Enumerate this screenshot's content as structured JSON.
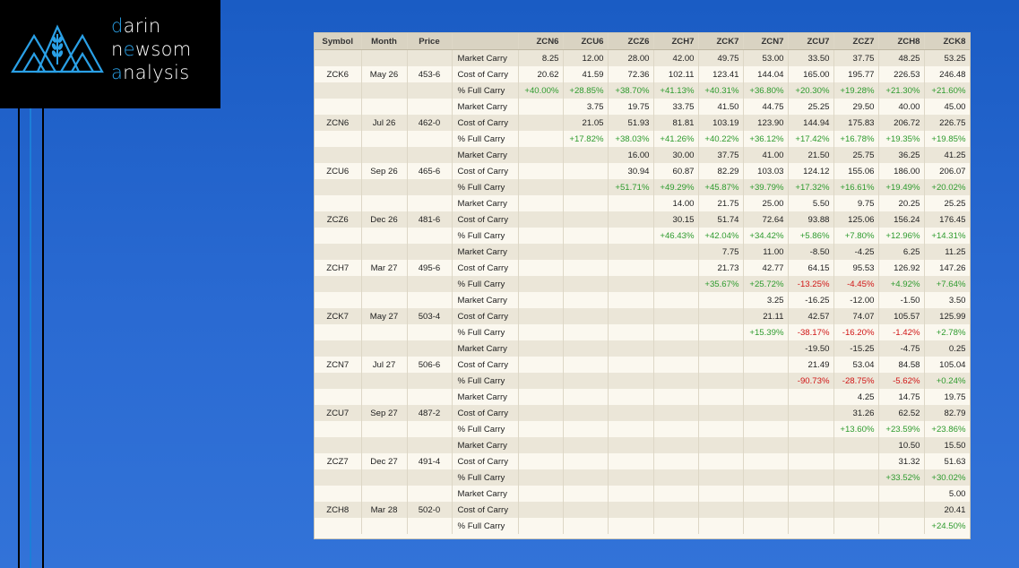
{
  "logo": {
    "line1_accent": "d",
    "line1_rest": "arin",
    "line2_pre": "n",
    "line2_accent": "e",
    "line2_mid": "w",
    "line2_rest": "som",
    "line3_accent": "a",
    "line3_rest": "nalysis",
    "accent_color": "#2aa0e6"
  },
  "table": {
    "headers": [
      "Symbol",
      "Month",
      "Price",
      "",
      "ZCN6",
      "ZCU6",
      "ZCZ6",
      "ZCH7",
      "ZCK7",
      "ZCN7",
      "ZCU7",
      "ZCZ7",
      "ZCH8",
      "ZCK8"
    ],
    "rows": [
      {
        "band": true,
        "cells": [
          "",
          "",
          "",
          "Market Carry",
          "8.25",
          "12.00",
          "28.00",
          "42.00",
          "49.75",
          "53.00",
          "33.50",
          "37.75",
          "48.25",
          "53.25"
        ]
      },
      {
        "band": false,
        "cells": [
          "ZCK6",
          "May 26",
          "453-6",
          "Cost of Carry",
          "20.62",
          "41.59",
          "72.36",
          "102.11",
          "123.41",
          "144.04",
          "165.00",
          "195.77",
          "226.53",
          "246.48"
        ]
      },
      {
        "band": true,
        "cells": [
          "",
          "",
          "",
          "% Full Carry",
          "+40.00%",
          "+28.85%",
          "+38.70%",
          "+41.13%",
          "+40.31%",
          "+36.80%",
          "+20.30%",
          "+19.28%",
          "+21.30%",
          "+21.60%"
        ]
      },
      {
        "band": false,
        "cells": [
          "",
          "",
          "",
          "Market Carry",
          "",
          "3.75",
          "19.75",
          "33.75",
          "41.50",
          "44.75",
          "25.25",
          "29.50",
          "40.00",
          "45.00"
        ]
      },
      {
        "band": true,
        "cells": [
          "ZCN6",
          "Jul 26",
          "462-0",
          "Cost of Carry",
          "",
          "21.05",
          "51.93",
          "81.81",
          "103.19",
          "123.90",
          "144.94",
          "175.83",
          "206.72",
          "226.75"
        ]
      },
      {
        "band": false,
        "cells": [
          "",
          "",
          "",
          "% Full Carry",
          "",
          "+17.82%",
          "+38.03%",
          "+41.26%",
          "+40.22%",
          "+36.12%",
          "+17.42%",
          "+16.78%",
          "+19.35%",
          "+19.85%"
        ]
      },
      {
        "band": true,
        "cells": [
          "",
          "",
          "",
          "Market Carry",
          "",
          "",
          "16.00",
          "30.00",
          "37.75",
          "41.00",
          "21.50",
          "25.75",
          "36.25",
          "41.25"
        ]
      },
      {
        "band": false,
        "cells": [
          "ZCU6",
          "Sep 26",
          "465-6",
          "Cost of Carry",
          "",
          "",
          "30.94",
          "60.87",
          "82.29",
          "103.03",
          "124.12",
          "155.06",
          "186.00",
          "206.07"
        ]
      },
      {
        "band": true,
        "cells": [
          "",
          "",
          "",
          "% Full Carry",
          "",
          "",
          "+51.71%",
          "+49.29%",
          "+45.87%",
          "+39.79%",
          "+17.32%",
          "+16.61%",
          "+19.49%",
          "+20.02%"
        ]
      },
      {
        "band": false,
        "cells": [
          "",
          "",
          "",
          "Market Carry",
          "",
          "",
          "",
          "14.00",
          "21.75",
          "25.00",
          "5.50",
          "9.75",
          "20.25",
          "25.25"
        ]
      },
      {
        "band": true,
        "cells": [
          "ZCZ6",
          "Dec 26",
          "481-6",
          "Cost of Carry",
          "",
          "",
          "",
          "30.15",
          "51.74",
          "72.64",
          "93.88",
          "125.06",
          "156.24",
          "176.45"
        ]
      },
      {
        "band": false,
        "cells": [
          "",
          "",
          "",
          "% Full Carry",
          "",
          "",
          "",
          "+46.43%",
          "+42.04%",
          "+34.42%",
          "+5.86%",
          "+7.80%",
          "+12.96%",
          "+14.31%"
        ]
      },
      {
        "band": true,
        "cells": [
          "",
          "",
          "",
          "Market Carry",
          "",
          "",
          "",
          "",
          "7.75",
          "11.00",
          "-8.50",
          "-4.25",
          "6.25",
          "11.25"
        ]
      },
      {
        "band": false,
        "cells": [
          "ZCH7",
          "Mar 27",
          "495-6",
          "Cost of Carry",
          "",
          "",
          "",
          "",
          "21.73",
          "42.77",
          "64.15",
          "95.53",
          "126.92",
          "147.26"
        ]
      },
      {
        "band": true,
        "cells": [
          "",
          "",
          "",
          "% Full Carry",
          "",
          "",
          "",
          "",
          "+35.67%",
          "+25.72%",
          "-13.25%",
          "-4.45%",
          "+4.92%",
          "+7.64%"
        ]
      },
      {
        "band": false,
        "cells": [
          "",
          "",
          "",
          "Market Carry",
          "",
          "",
          "",
          "",
          "",
          "3.25",
          "-16.25",
          "-12.00",
          "-1.50",
          "3.50"
        ]
      },
      {
        "band": true,
        "cells": [
          "ZCK7",
          "May 27",
          "503-4",
          "Cost of Carry",
          "",
          "",
          "",
          "",
          "",
          "21.11",
          "42.57",
          "74.07",
          "105.57",
          "125.99"
        ]
      },
      {
        "band": false,
        "cells": [
          "",
          "",
          "",
          "% Full Carry",
          "",
          "",
          "",
          "",
          "",
          "+15.39%",
          "-38.17%",
          "-16.20%",
          "-1.42%",
          "+2.78%"
        ]
      },
      {
        "band": true,
        "cells": [
          "",
          "",
          "",
          "Market Carry",
          "",
          "",
          "",
          "",
          "",
          "",
          "-19.50",
          "-15.25",
          "-4.75",
          "0.25"
        ]
      },
      {
        "band": false,
        "cells": [
          "ZCN7",
          "Jul 27",
          "506-6",
          "Cost of Carry",
          "",
          "",
          "",
          "",
          "",
          "",
          "21.49",
          "53.04",
          "84.58",
          "105.04"
        ]
      },
      {
        "band": true,
        "cells": [
          "",
          "",
          "",
          "% Full Carry",
          "",
          "",
          "",
          "",
          "",
          "",
          "-90.73%",
          "-28.75%",
          "-5.62%",
          "+0.24%"
        ]
      },
      {
        "band": false,
        "cells": [
          "",
          "",
          "",
          "Market Carry",
          "",
          "",
          "",
          "",
          "",
          "",
          "",
          "4.25",
          "14.75",
          "19.75"
        ]
      },
      {
        "band": true,
        "cells": [
          "ZCU7",
          "Sep 27",
          "487-2",
          "Cost of Carry",
          "",
          "",
          "",
          "",
          "",
          "",
          "",
          "31.26",
          "62.52",
          "82.79"
        ]
      },
      {
        "band": false,
        "cells": [
          "",
          "",
          "",
          "% Full Carry",
          "",
          "",
          "",
          "",
          "",
          "",
          "",
          "+13.60%",
          "+23.59%",
          "+23.86%"
        ]
      },
      {
        "band": true,
        "cells": [
          "",
          "",
          "",
          "Market Carry",
          "",
          "",
          "",
          "",
          "",
          "",
          "",
          "",
          "10.50",
          "15.50"
        ]
      },
      {
        "band": false,
        "cells": [
          "ZCZ7",
          "Dec 27",
          "491-4",
          "Cost of Carry",
          "",
          "",
          "",
          "",
          "",
          "",
          "",
          "",
          "31.32",
          "51.63"
        ]
      },
      {
        "band": true,
        "cells": [
          "",
          "",
          "",
          "% Full Carry",
          "",
          "",
          "",
          "",
          "",
          "",
          "",
          "",
          "+33.52%",
          "+30.02%"
        ]
      },
      {
        "band": false,
        "cells": [
          "",
          "",
          "",
          "Market Carry",
          "",
          "",
          "",
          "",
          "",
          "",
          "",
          "",
          "",
          "5.00"
        ]
      },
      {
        "band": true,
        "cells": [
          "ZCH8",
          "Mar 28",
          "502-0",
          "Cost of Carry",
          "",
          "",
          "",
          "",
          "",
          "",
          "",
          "",
          "",
          "20.41"
        ]
      },
      {
        "band": false,
        "cells": [
          "",
          "",
          "",
          "% Full Carry",
          "",
          "",
          "",
          "",
          "",
          "",
          "",
          "",
          "",
          "+24.50%"
        ]
      }
    ]
  },
  "colors": {
    "positive": "#2e9b2e",
    "negative": "#d01515",
    "header_bg": "#d9d3c2",
    "band_bg": "#ebe6d8",
    "row_bg": "#fbf8ef"
  }
}
